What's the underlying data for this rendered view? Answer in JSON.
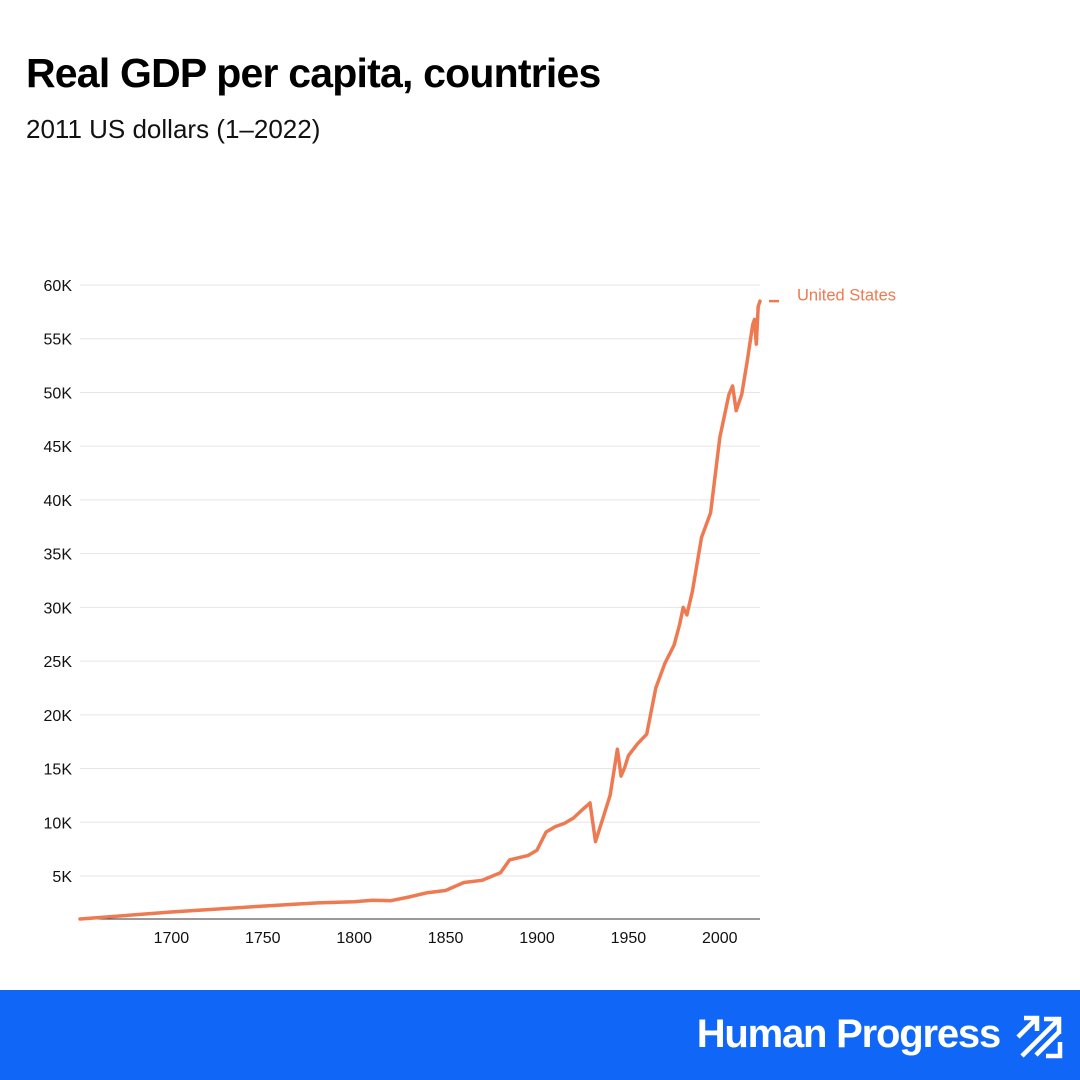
{
  "header": {
    "title": "Real GDP per capita, countries",
    "subtitle": "2011 US dollars (1–2022)"
  },
  "footer": {
    "brand": "Human Progress",
    "background_color": "#1067f7",
    "logo_icon": "trending-arrows-icon"
  },
  "chart_data": {
    "type": "line",
    "title": "Real GDP per capita, countries",
    "subtitle": "2011 US dollars (1–2022)",
    "xlabel": "",
    "ylabel": "",
    "xlim": [
      1650,
      2022
    ],
    "ylim": [
      1000,
      60000
    ],
    "grid": true,
    "x_ticks": [
      1700,
      1750,
      1800,
      1850,
      1900,
      1950,
      2000
    ],
    "x_tick_labels": [
      "1700",
      "1750",
      "1800",
      "1850",
      "1900",
      "1950",
      "2000"
    ],
    "y_ticks": [
      5000,
      10000,
      15000,
      20000,
      25000,
      30000,
      35000,
      40000,
      45000,
      50000,
      55000,
      60000
    ],
    "y_tick_labels": [
      "5K",
      "10K",
      "15K",
      "20K",
      "25K",
      "30K",
      "35K",
      "40K",
      "45K",
      "50K",
      "55K",
      "60K"
    ],
    "legend_position": "right",
    "series": [
      {
        "name": "United States",
        "color": "#ee7a52",
        "x": [
          1650,
          1700,
          1750,
          1780,
          1800,
          1810,
          1820,
          1830,
          1840,
          1850,
          1860,
          1870,
          1880,
          1885,
          1890,
          1895,
          1900,
          1905,
          1910,
          1915,
          1920,
          1925,
          1929,
          1932,
          1935,
          1940,
          1944,
          1946,
          1948,
          1950,
          1955,
          1960,
          1965,
          1970,
          1975,
          1978,
          1980,
          1982,
          1985,
          1990,
          1995,
          2000,
          2005,
          2007,
          2009,
          2012,
          2015,
          2018,
          2019,
          2020,
          2021,
          2022
        ],
        "values": [
          1000,
          1650,
          2200,
          2500,
          2600,
          2750,
          2700,
          3050,
          3450,
          3650,
          4400,
          4600,
          5300,
          6500,
          6700,
          6900,
          7400,
          9100,
          9600,
          9900,
          10400,
          11200,
          11800,
          8200,
          9800,
          12500,
          16800,
          14300,
          15100,
          16200,
          17300,
          18200,
          22500,
          24800,
          26500,
          28400,
          30000,
          29300,
          31500,
          36500,
          38800,
          45800,
          49800,
          50600,
          48300,
          49800,
          52900,
          56300,
          56800,
          54500,
          58000,
          58500
        ]
      }
    ]
  }
}
